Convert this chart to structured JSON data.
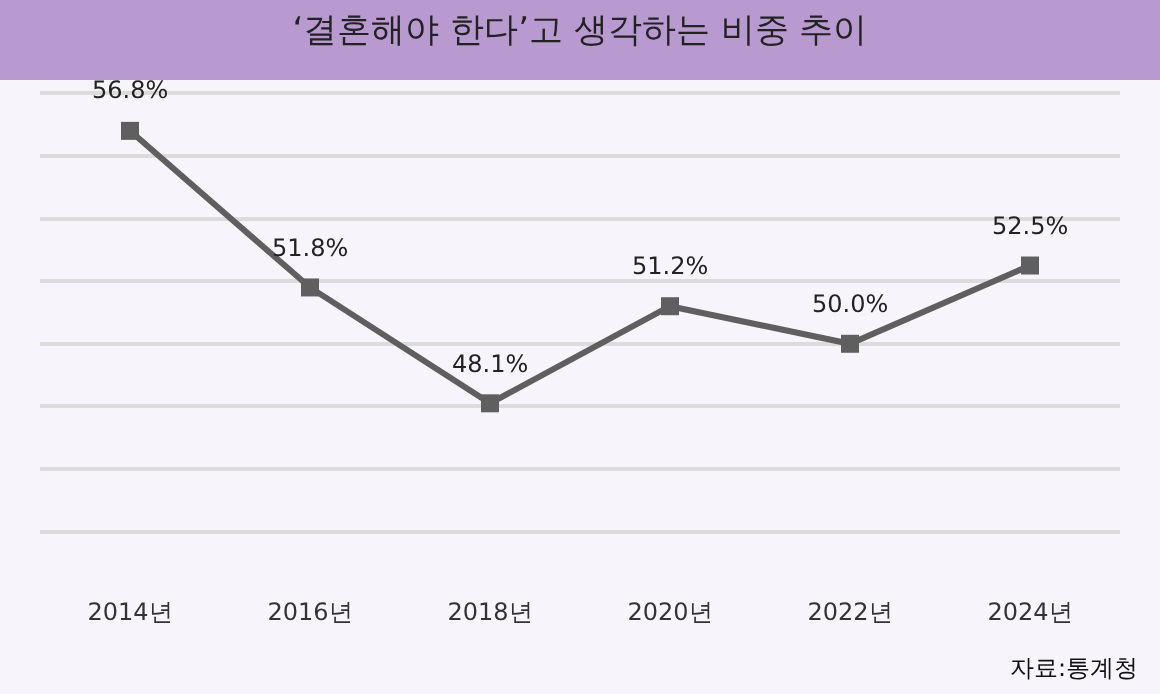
{
  "chart_data": {
    "type": "line",
    "title": "‘결혼해야 한다’고 생각하는 비중 추이",
    "categories": [
      "2014년",
      "2016년",
      "2018년",
      "2020년",
      "2022년",
      "2024년"
    ],
    "values": [
      56.8,
      51.8,
      48.1,
      51.2,
      50.0,
      52.5
    ],
    "value_labels": [
      "56.8%",
      "51.8%",
      "48.1%",
      "51.2%",
      "50.0%",
      "52.5%"
    ],
    "color": "#5f5f5f",
    "marker": "square",
    "line_style": "solid",
    "grid": "y",
    "tick_labels": "x",
    "annotations": [
      "자료:통계청"
    ]
  }
}
